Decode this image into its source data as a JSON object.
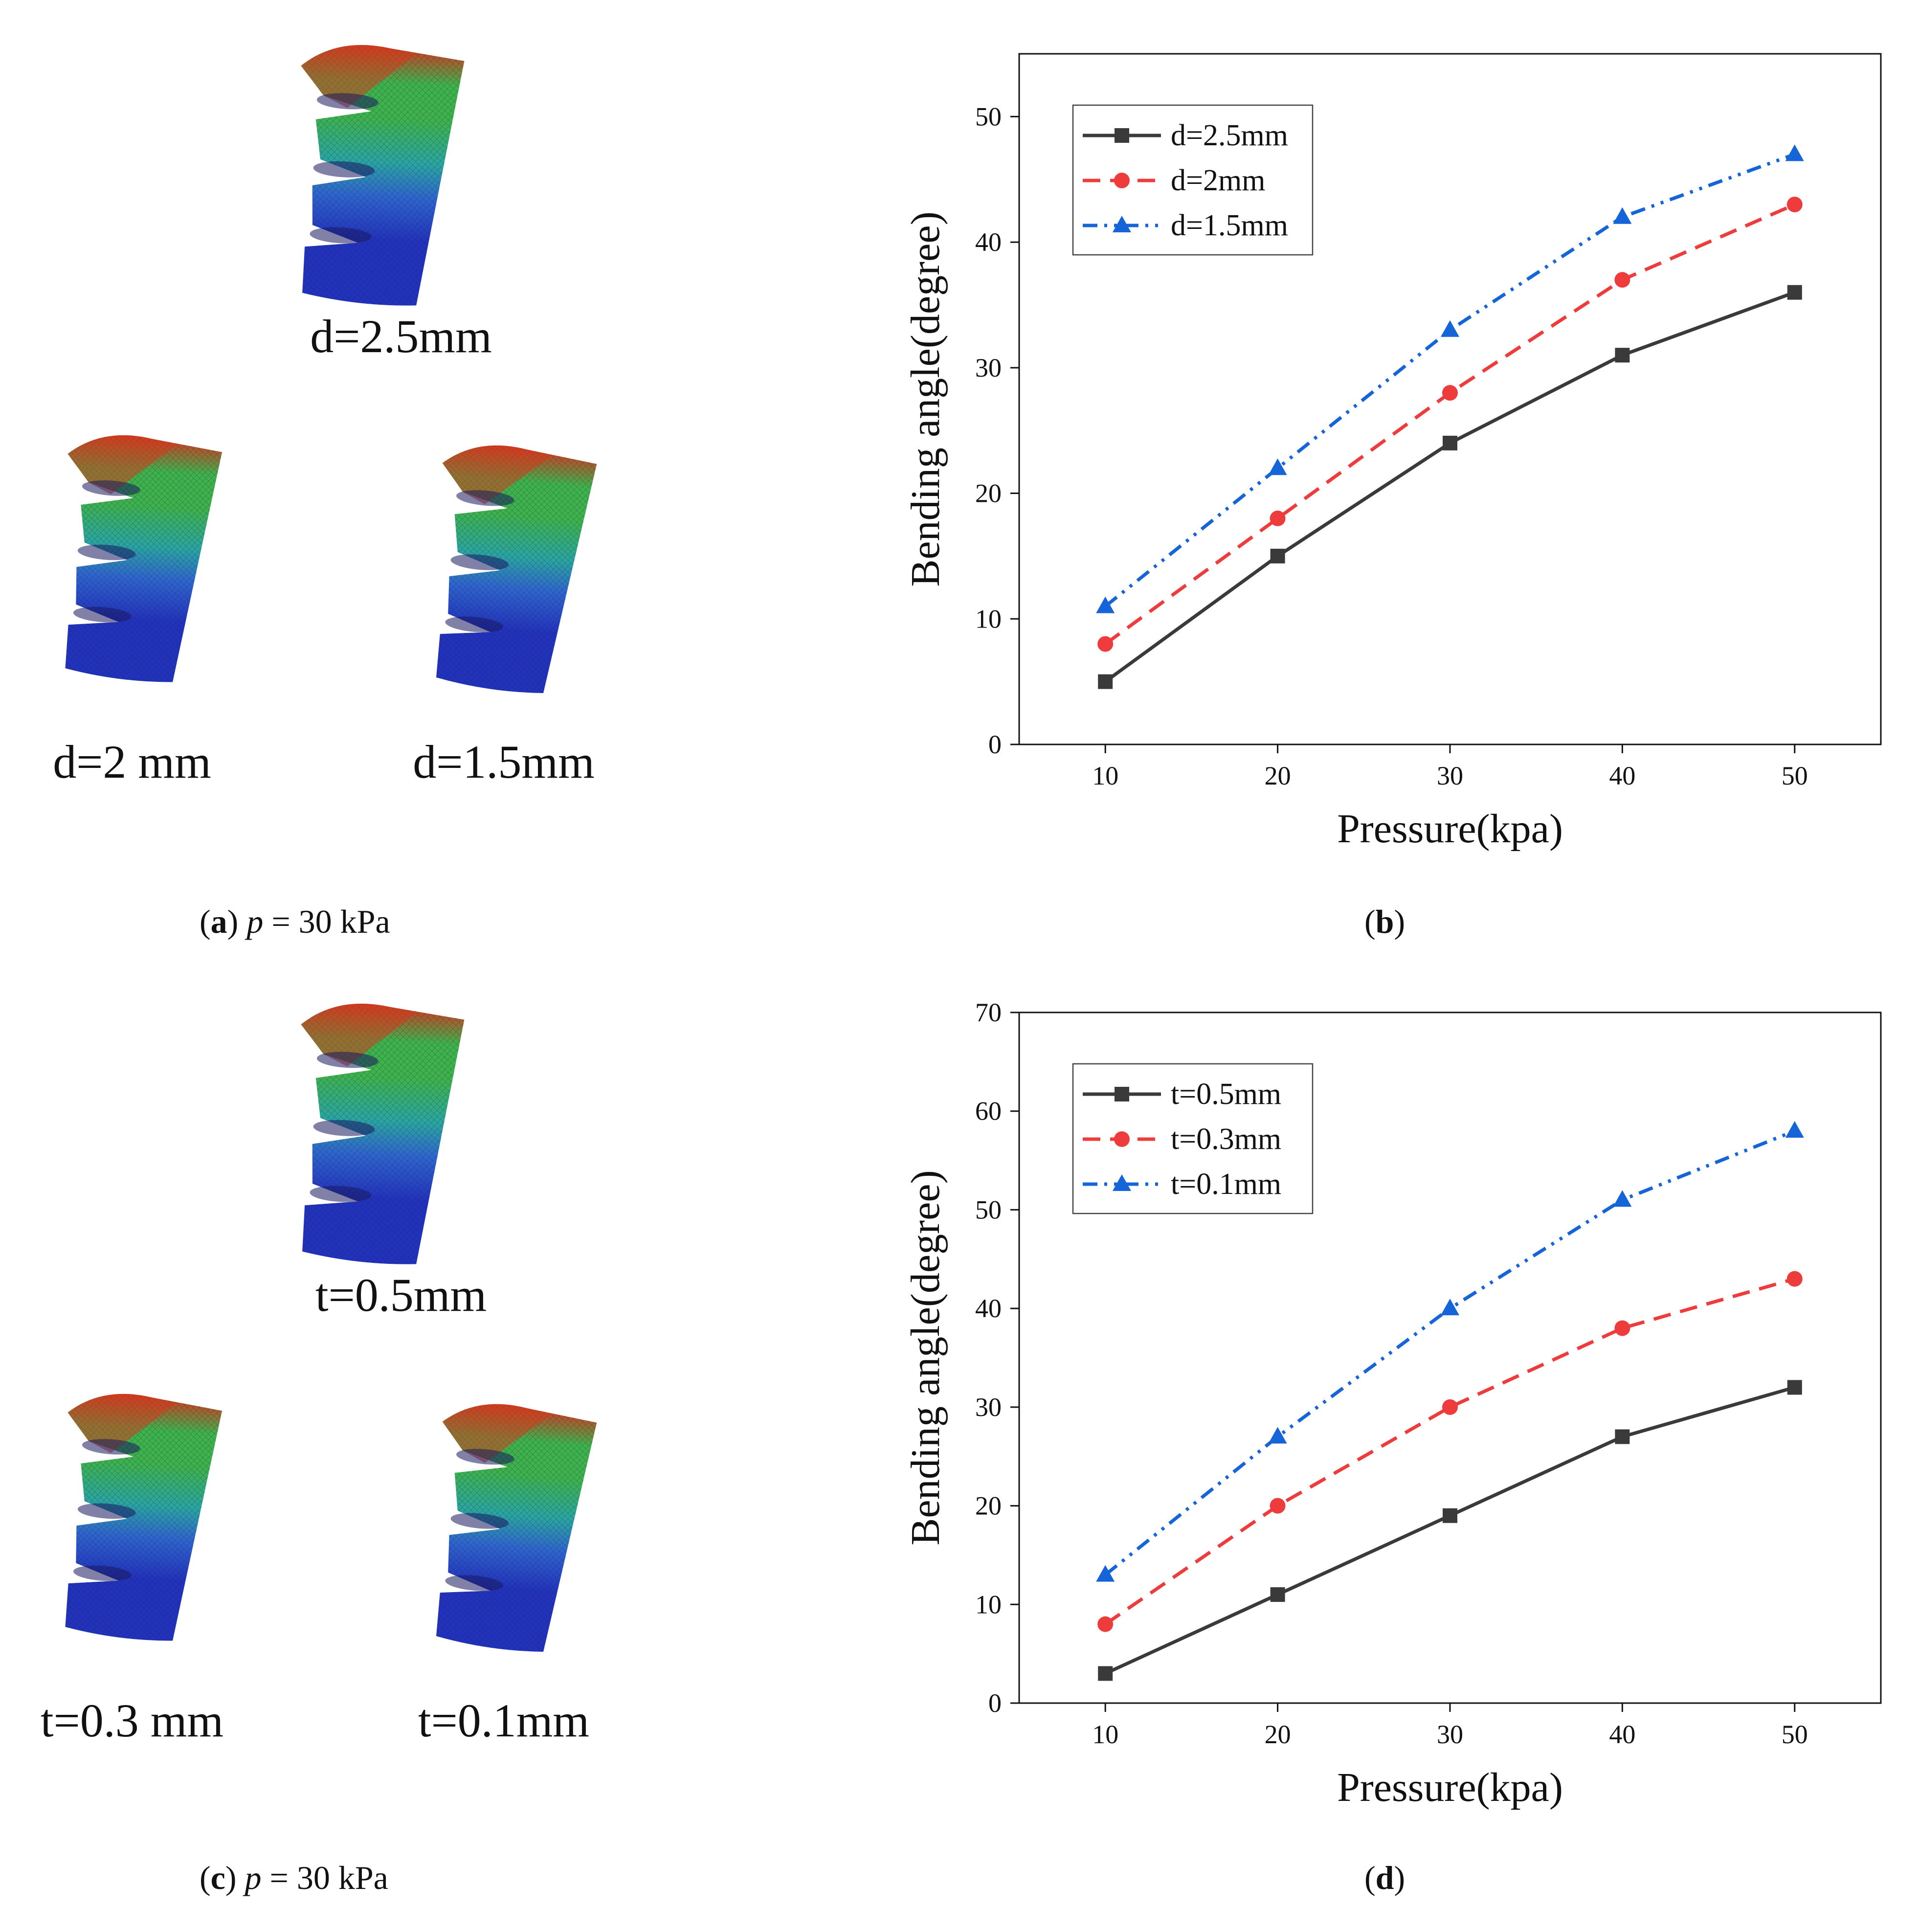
{
  "colors": {
    "black_series": "#3a3a3a",
    "red_series": "#ee3b3b",
    "blue_series": "#1565d8",
    "mesh_dark": "#1a1a60",
    "blue_fill": "#2233bb",
    "mid_blue": "#2f66cc",
    "cyan": "#2aa6a0",
    "green": "#3eb34a",
    "red_tip": "#d23a1e"
  },
  "panels": {
    "a": {
      "models": [
        "d=2.5mm",
        "d=2 mm",
        "d=1.5mm"
      ],
      "caption": {
        "letter": "a",
        "var": "p",
        "rest": " = 30 kPa"
      }
    },
    "b": {
      "caption": {
        "letter": "b"
      }
    },
    "c": {
      "models": [
        "t=0.5mm",
        "t=0.3 mm",
        "t=0.1mm"
      ],
      "caption": {
        "letter": "c",
        "var": "p",
        "rest": " = 30 kPa"
      }
    },
    "d": {
      "caption": {
        "letter": "d"
      }
    }
  },
  "chart_data": [
    {
      "id": "b",
      "type": "line",
      "title": "",
      "xlabel": "Pressure(kpa)",
      "ylabel": "Bending angle(degree)",
      "x": [
        10,
        20,
        30,
        40,
        50
      ],
      "xlim": [
        5,
        55
      ],
      "ylim": [
        0,
        55
      ],
      "yticks": [
        0,
        10,
        20,
        30,
        40,
        50
      ],
      "xticks": [
        10,
        20,
        30,
        40,
        50
      ],
      "legend_position": "top-left",
      "grid": false,
      "series": [
        {
          "name": "d=2.5mm",
          "values": [
            5,
            15,
            24,
            31,
            36
          ],
          "marker": "square",
          "dash": "solid",
          "color": "#3a3a3a"
        },
        {
          "name": "d=2mm",
          "values": [
            8,
            18,
            28,
            37,
            43
          ],
          "marker": "circle",
          "dash": "dash",
          "color": "#ee3b3b"
        },
        {
          "name": "d=1.5mm",
          "values": [
            11,
            22,
            33,
            42,
            47
          ],
          "marker": "triangle",
          "dash": "dashdotdot",
          "color": "#1565d8"
        }
      ]
    },
    {
      "id": "d",
      "type": "line",
      "title": "",
      "xlabel": "Pressure(kpa)",
      "ylabel": "Bending angle(degree)",
      "x": [
        10,
        20,
        30,
        40,
        50
      ],
      "xlim": [
        5,
        55
      ],
      "ylim": [
        0,
        70
      ],
      "yticks": [
        0,
        10,
        20,
        30,
        40,
        50,
        60,
        70
      ],
      "xticks": [
        10,
        20,
        30,
        40,
        50
      ],
      "legend_position": "top-left",
      "grid": false,
      "series": [
        {
          "name": "t=0.5mm",
          "values": [
            3,
            11,
            19,
            27,
            32
          ],
          "marker": "square",
          "dash": "solid",
          "color": "#3a3a3a"
        },
        {
          "name": "t=0.3mm",
          "values": [
            8,
            20,
            30,
            38,
            43
          ],
          "marker": "circle",
          "dash": "dash",
          "color": "#ee3b3b"
        },
        {
          "name": "t=0.1mm",
          "values": [
            13,
            27,
            40,
            51,
            58
          ],
          "marker": "triangle",
          "dash": "dashdotdot",
          "color": "#1565d8"
        }
      ]
    }
  ]
}
